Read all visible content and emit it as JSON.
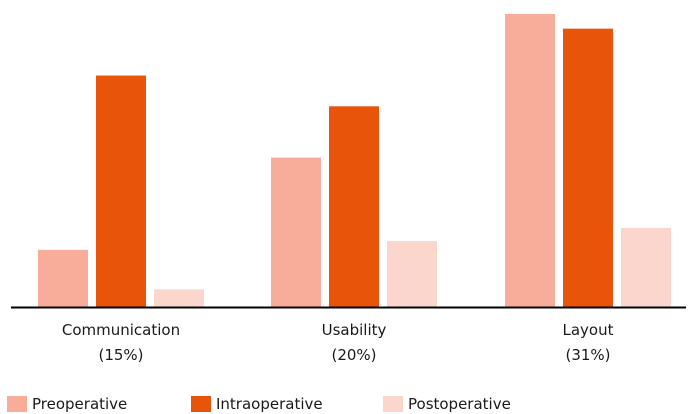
{
  "chart_data": {
    "type": "bar",
    "categories": [
      "Communication",
      "Usability",
      "Layout"
    ],
    "category_sublabels": [
      "(15%)",
      "(20%)",
      "(31%)"
    ],
    "series": [
      {
        "name": "Preoperative",
        "color": "#f7ad9a",
        "values": [
          19.5,
          51,
          100
        ]
      },
      {
        "name": "Intraoperative",
        "color": "#e8550a",
        "values": [
          79,
          68.5,
          95
        ]
      },
      {
        "name": "Postoperative",
        "color": "#fad6cc",
        "values": [
          6,
          22.5,
          27
        ]
      }
    ],
    "ylim": [
      0,
      100
    ],
    "grid": false,
    "legend_position": "bottom-left",
    "axis_color": "#000000"
  }
}
